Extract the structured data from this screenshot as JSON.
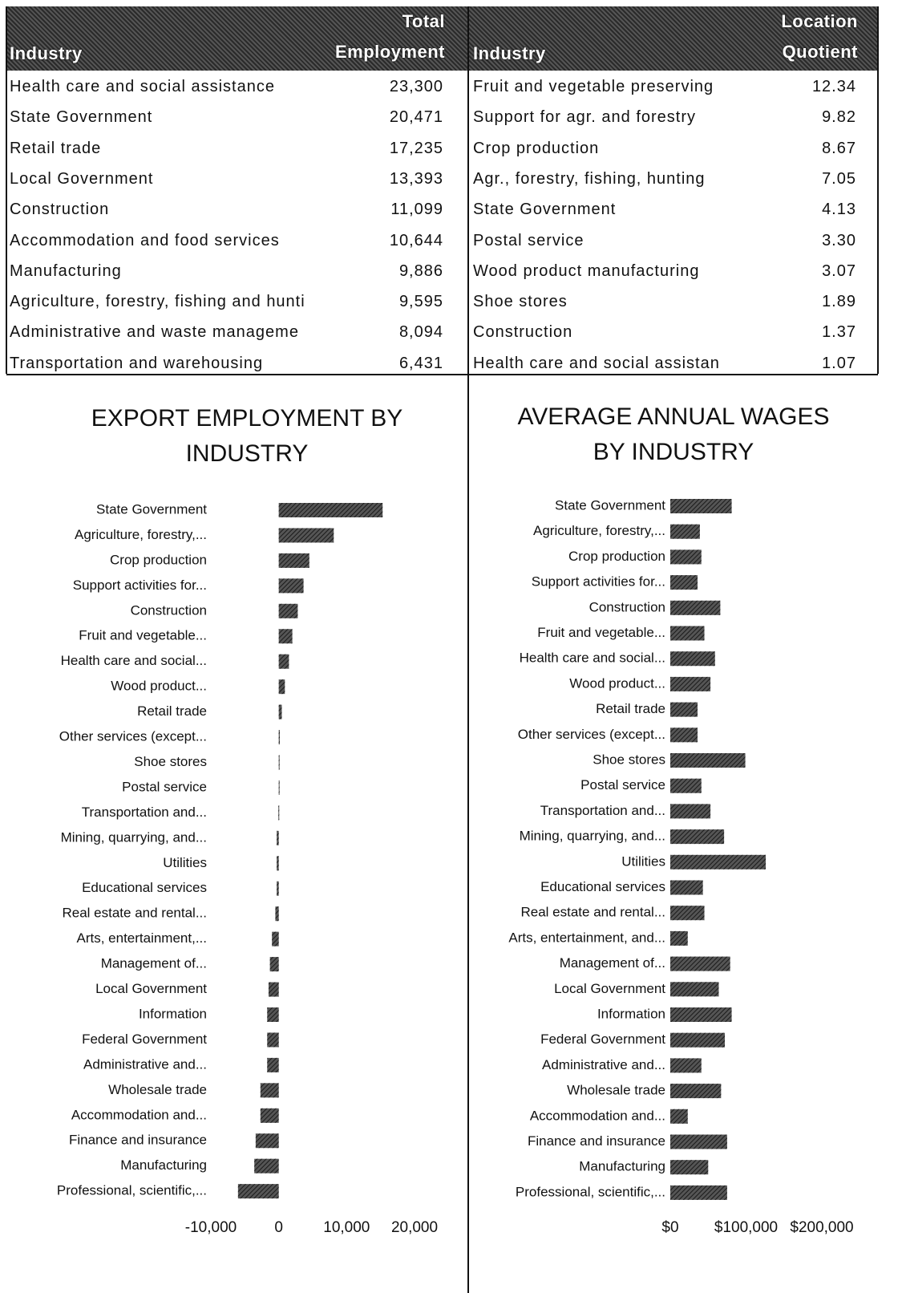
{
  "tables": [
    {
      "headers": [
        "Industry",
        "Total Employment"
      ],
      "rows": [
        [
          "Health care and social assistance",
          "23,300"
        ],
        [
          "State Government",
          "20,471"
        ],
        [
          "Retail trade",
          "17,235"
        ],
        [
          "Local Government",
          "13,393"
        ],
        [
          "Construction",
          "11,099"
        ],
        [
          "Accommodation and food services",
          "10,644"
        ],
        [
          "Manufacturing",
          "9,886"
        ],
        [
          "Agriculture, forestry, fishing and hunti",
          "9,595"
        ],
        [
          "Administrative and waste manageme",
          "8,094"
        ],
        [
          "Transportation and warehousing",
          "6,431"
        ]
      ]
    },
    {
      "headers": [
        "Industry",
        "Location Quotient"
      ],
      "rows": [
        [
          "Fruit and vegetable preserving",
          "12.34"
        ],
        [
          "Support for agr. and forestry",
          "9.82"
        ],
        [
          "Crop production",
          "8.67"
        ],
        [
          "Agr., forestry, fishing, hunting",
          "7.05"
        ],
        [
          "State Government",
          "4.13"
        ],
        [
          "Postal service",
          "3.30"
        ],
        [
          "Wood product manufacturing",
          "3.07"
        ],
        [
          "Shoe stores",
          "1.89"
        ],
        [
          "Construction",
          "1.37"
        ],
        [
          "Health care and social assistan",
          "1.07"
        ]
      ]
    }
  ],
  "chart_data": [
    {
      "type": "bar",
      "orientation": "horizontal",
      "title": "EXPORT EMPLOYMENT BY INDUSTRY",
      "color": "#555555",
      "categories": [
        "State Government",
        "Agriculture, forestry,...",
        "Crop production",
        "Support activities for...",
        "Construction",
        "Fruit and vegetable...",
        "Health care and social...",
        "Wood product...",
        "Retail trade",
        "Other services (except...",
        "Shoe stores",
        "Postal service",
        "Transportation and...",
        "Mining, quarrying, and...",
        "Utilities",
        "Educational services",
        "Real estate and rental...",
        "Arts, entertainment,...",
        "Management of...",
        "Local Government",
        "Information",
        "Federal Government",
        "Administrative and...",
        "Wholesale trade",
        "Accommodation and...",
        "Finance and insurance",
        "Manufacturing",
        "Professional, scientific,..."
      ],
      "values": [
        15300,
        8100,
        4500,
        3650,
        2800,
        2000,
        1500,
        900,
        450,
        150,
        120,
        100,
        -50,
        -300,
        -300,
        -300,
        -500,
        -1000,
        -1300,
        -1500,
        -1700,
        -1700,
        -1700,
        -2700,
        -2700,
        -3400,
        -3600,
        -6000
      ],
      "xlim": [
        -10000,
        20000
      ],
      "xticks": [
        {
          "value": -10000,
          "label": "-10,000"
        },
        0,
        {
          "value": 10000,
          "label": "10,000"
        },
        {
          "value": 20000,
          "label": "20,000"
        }
      ]
    },
    {
      "type": "bar",
      "orientation": "horizontal",
      "title": "AVERAGE ANNUAL WAGES BY INDUSTRY",
      "color": "#555555",
      "categories": [
        "State Government",
        "Agriculture, forestry,...",
        "Crop production",
        "Support activities for...",
        "Construction",
        "Fruit and vegetable...",
        "Health care and social...",
        "Wood product...",
        "Retail trade",
        "Other services (except...",
        "Shoe stores",
        "Postal service",
        "Transportation and...",
        "Mining, quarrying, and...",
        "Utilities",
        "Educational services",
        "Real estate and rental...",
        "Arts, entertainment, and...",
        "Management of...",
        "Local Government",
        "Information",
        "Federal Government",
        "Administrative and...",
        "Wholesale trade",
        "Accommodation and...",
        "Finance and insurance",
        "Manufacturing",
        "Professional, scientific,..."
      ],
      "values": [
        81000,
        39000,
        41000,
        36000,
        66000,
        45000,
        59000,
        53000,
        36000,
        36000,
        99000,
        41000,
        53000,
        71000,
        126000,
        43000,
        45000,
        23000,
        79000,
        64000,
        81000,
        72000,
        41000,
        67000,
        23000,
        75000,
        50000,
        75000
      ],
      "xlim": [
        0,
        200000
      ],
      "xticks": [
        {
          "value": 0,
          "label": "$0"
        },
        {
          "value": 100000,
          "label": "$100,000"
        },
        {
          "value": 200000,
          "label": "$200,000"
        }
      ]
    }
  ]
}
